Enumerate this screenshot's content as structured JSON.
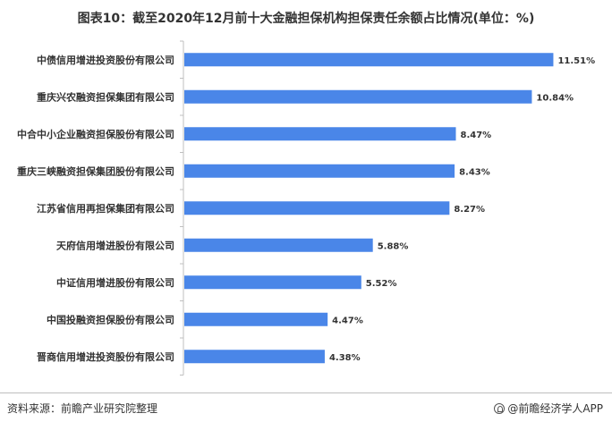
{
  "title": "图表10：截至2020年12月前十大金融担保机构担保责任余额占比情况(单位：%)",
  "source": "资料来源：前瞻产业研究院整理",
  "brand": "@前瞻经济学人APP",
  "colors": {
    "bar": "#4A86E8",
    "axis": "#bfbfbf",
    "text": "#333333"
  },
  "chart_data": {
    "type": "bar",
    "orientation": "horizontal",
    "categories": [
      "中债信用增进投资股份有限公司",
      "重庆兴农融资担保集团有限公司",
      "中合中小企业融资担保股份有限公司",
      "重庆三峡融资担保集团股份有限公司",
      "江苏省信用再担保集团有限公司",
      "天府信用增进股份有限公司",
      "中证信用增进股份有限公司",
      "中国投融资担保股份有限公司",
      "晋商信用增进投资股份有限公司"
    ],
    "values": [
      11.51,
      10.84,
      8.47,
      8.43,
      8.27,
      5.88,
      5.52,
      4.47,
      4.38
    ],
    "value_labels": [
      "11.51%",
      "10.84%",
      "8.47%",
      "8.43%",
      "8.27%",
      "5.88%",
      "5.52%",
      "4.47%",
      "4.38%"
    ],
    "xlim": [
      0,
      12
    ],
    "grid": false,
    "legend": "none"
  }
}
